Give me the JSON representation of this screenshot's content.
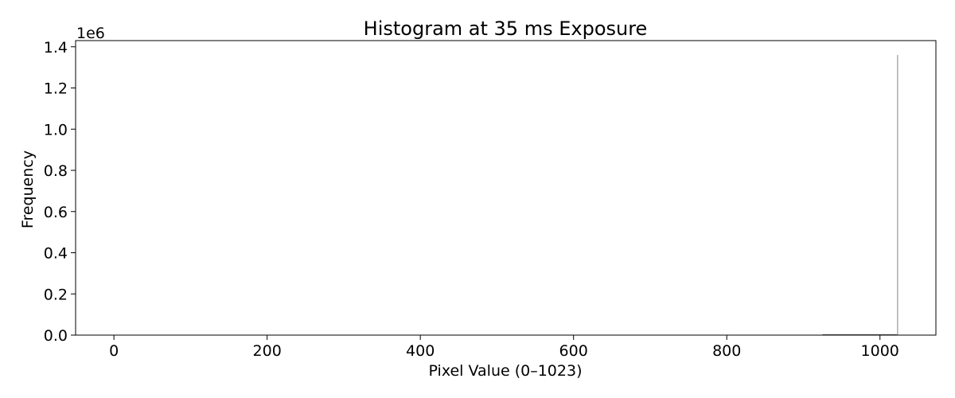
{
  "chart_data": {
    "type": "bar",
    "title": "Histogram at 35 ms Exposure",
    "xlabel": "Pixel Value (0–1023)",
    "ylabel": "Frequency",
    "y_offset_label": "1e6",
    "xlim": [
      -50,
      1073
    ],
    "ylim": [
      0,
      1.43
    ],
    "y_scale_multiplier": 1000000,
    "x_ticks": [
      0,
      200,
      400,
      600,
      800,
      1000
    ],
    "x_tick_labels": [
      "0",
      "200",
      "400",
      "600",
      "800",
      "1000"
    ],
    "y_ticks": [
      0.0,
      0.2,
      0.4,
      0.6,
      0.8,
      1.0,
      1.2,
      1.4
    ],
    "y_tick_labels": [
      "0.0",
      "0.2",
      "0.4",
      "0.6",
      "0.8",
      "1.0",
      "1.2",
      "1.4"
    ],
    "bin_width": 1,
    "bins": [
      {
        "x": 930,
        "value": 0.0006
      },
      {
        "x": 950,
        "value": 0.0008
      },
      {
        "x": 970,
        "value": 0.001
      },
      {
        "x": 990,
        "value": 0.0012
      },
      {
        "x": 1005,
        "value": 0.0015
      },
      {
        "x": 1015,
        "value": 0.0025
      },
      {
        "x": 1020,
        "value": 0.004
      },
      {
        "x": 1023,
        "value": 1.36
      }
    ],
    "grid": false,
    "bar_color": "#808080",
    "edge_color": "#000000"
  }
}
